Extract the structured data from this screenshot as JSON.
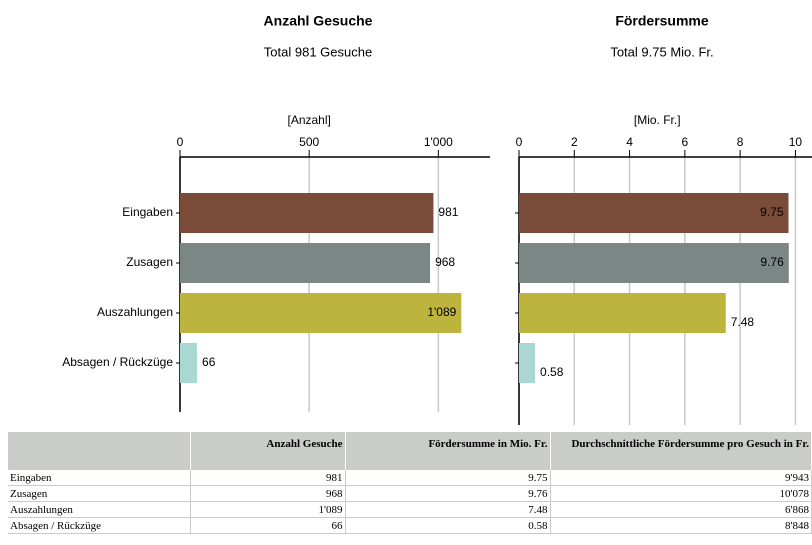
{
  "chart_data": [
    {
      "type": "barh",
      "title": "Anzahl Gesuche",
      "subtitle": "Total 981 Gesuche",
      "xlabel": "[Anzahl]",
      "categories": [
        "Eingaben",
        "Zusagen",
        "Auszahlungen",
        "Absagen / Rückzüge"
      ],
      "values": [
        981,
        968,
        1089,
        66
      ],
      "value_labels": [
        "981",
        "968",
        "1'089",
        "66"
      ],
      "colors": [
        "#7b4b3a",
        "#7a8785",
        "#bdb43d",
        "#a9d7d3"
      ],
      "xlim": [
        0,
        1200
      ],
      "xticks": [
        0,
        500,
        {
          "value": 1000,
          "label": "1'000"
        }
      ],
      "grid": true
    },
    {
      "type": "barh",
      "title": "Fördersumme",
      "subtitle": "Total 9.75 Mio. Fr.",
      "xlabel": "[Mio. Fr.]",
      "values": [
        9.75,
        9.76,
        7.48,
        0.58
      ],
      "colors": [
        "#7b4b3a",
        "#7a8785",
        "#bdb43d",
        "#a9d7d3"
      ],
      "xlim": [
        0,
        10.6
      ],
      "xticks": [
        0,
        2,
        4,
        6,
        8,
        10
      ],
      "grid": true
    }
  ],
  "table": {
    "headers": [
      "Anzahl Gesuche",
      "Fördersumme in Mio. Fr.",
      "Durchschnittliche Fördersumme pro Gesuch in Fr."
    ],
    "rows": [
      [
        "Eingaben",
        "981",
        "9.75",
        "9'943"
      ],
      [
        "Zusagen",
        "968",
        "9.76",
        "10'078"
      ],
      [
        "Auszahlungen",
        "1'089",
        "7.48",
        "6'868"
      ],
      [
        "Absagen / Rückzüge",
        "66",
        "0.58",
        "8'848"
      ]
    ]
  }
}
